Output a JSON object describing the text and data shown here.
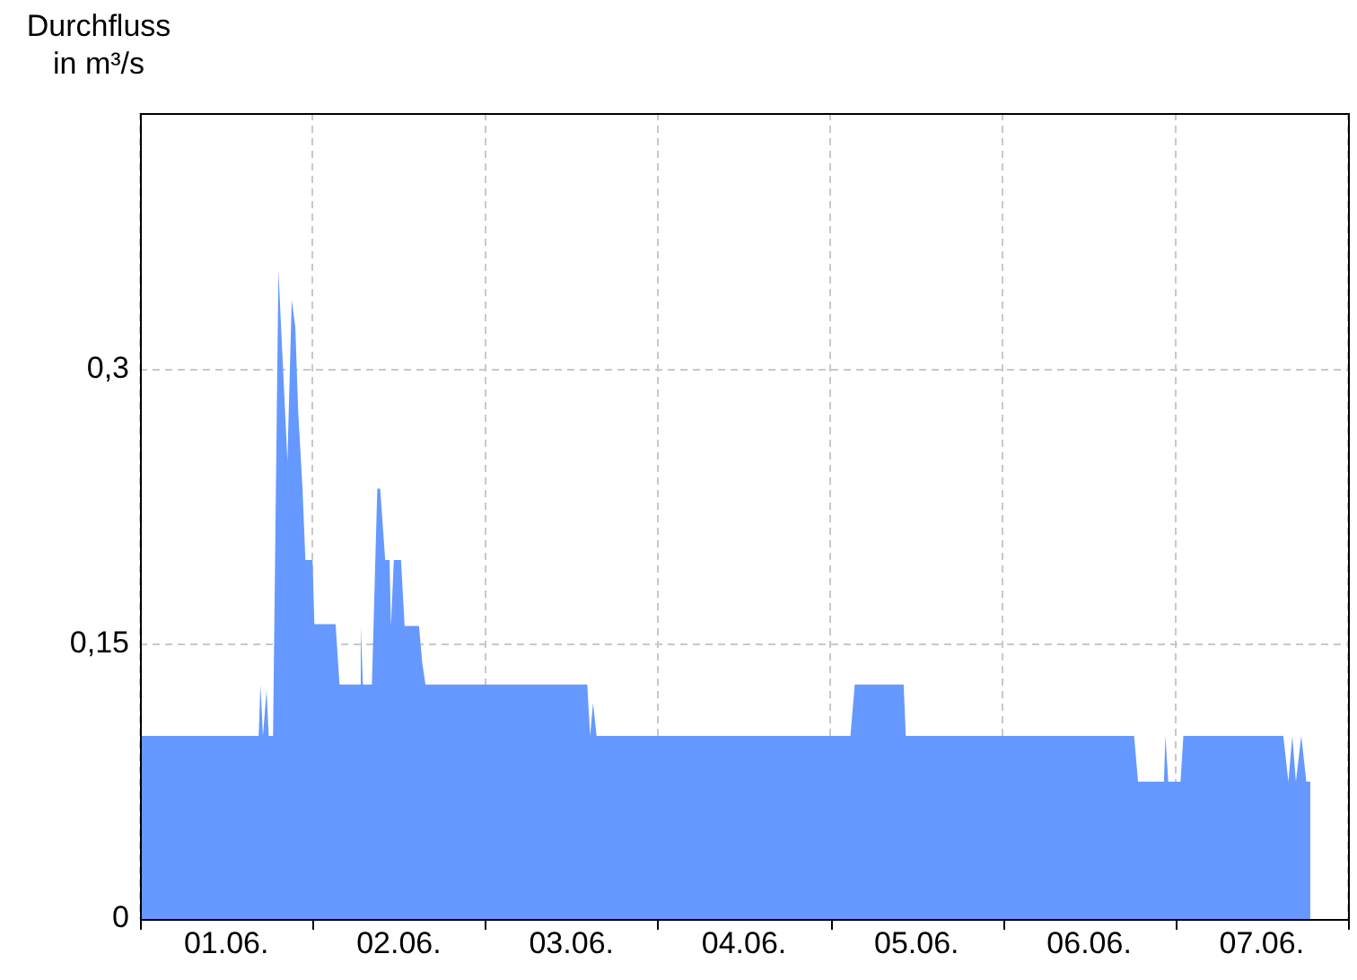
{
  "chart_data": {
    "type": "area",
    "ylabel": "Durchfluss\nin m³/s",
    "x": [
      "--06-01T00:00",
      "--06-01T16:30",
      "--06-01T16:45",
      "--06-01T17:06",
      "--06-01T17:36",
      "--06-01T17:54",
      "--06-01T18:30",
      "--06-01T19:15",
      "--06-01T20:30",
      "--06-01T21:06",
      "--06-01T21:36",
      "--06-01T22:00",
      "--06-01T22:36",
      "--06-01T23:00",
      "--06-02T00:00",
      "--06-02T00:15",
      "--06-02T03:12",
      "--06-02T03:45",
      "--06-02T06:30",
      "--06-02T06:42",
      "--06-02T07:00",
      "--06-02T08:15",
      "--06-02T09:00",
      "--06-02T09:24",
      "--06-02T10:06",
      "--06-02T10:42",
      "--06-02T10:54",
      "--06-02T11:18",
      "--06-02T12:18",
      "--06-02T12:48",
      "--06-02T14:48",
      "--06-02T15:15",
      "--06-02T15:42",
      "--06-03T14:12",
      "--06-03T14:36",
      "--06-03T15:00",
      "--06-03T15:30",
      "--06-05T02:48",
      "--06-05T03:24",
      "--06-05T10:12",
      "--06-05T10:30",
      "--06-06T18:15",
      "--06-06T18:48",
      "--06-06T22:24",
      "--06-06T22:36",
      "--06-06T23:00",
      "--06-07T00:42",
      "--06-07T01:06",
      "--06-07T15:00",
      "--06-07T15:42",
      "--06-07T16:15",
      "--06-07T16:45",
      "--06-07T17:30",
      "--06-07T18:12",
      "--06-07T18:45"
    ],
    "series": [
      {
        "color": "#6699ff",
        "values": [
          0.1,
          0.1,
          0.128,
          0.1,
          0.125,
          0.1,
          0.1,
          0.354,
          0.25,
          0.338,
          0.323,
          0.277,
          0.235,
          0.196,
          0.196,
          0.161,
          0.161,
          0.128,
          0.128,
          0.16,
          0.128,
          0.128,
          0.235,
          0.235,
          0.196,
          0.196,
          0.16,
          0.196,
          0.196,
          0.16,
          0.16,
          0.14,
          0.128,
          0.128,
          0.1,
          0.118,
          0.1,
          0.1,
          0.128,
          0.128,
          0.1,
          0.1,
          0.075,
          0.075,
          0.1,
          0.075,
          0.075,
          0.1,
          0.1,
          0.075,
          0.1,
          0.075,
          0.1,
          0.075,
          0.075
        ]
      }
    ],
    "xlim": [
      "--06-01",
      "--06-08"
    ],
    "xticks": [
      {
        "value": "--06-01",
        "label": null
      },
      {
        "value": "--06-01T12:00",
        "label": "01.06."
      },
      {
        "value": "--06-02",
        "label": null
      },
      {
        "value": "--06-02T12:00",
        "label": "02.06."
      },
      {
        "value": "--06-03",
        "label": null
      },
      {
        "value": "--06-03T12:00",
        "label": "03.06."
      },
      {
        "value": "--06-04",
        "label": null
      },
      {
        "value": "--06-04T12:00",
        "label": "04.06."
      },
      {
        "value": "--06-05",
        "label": null
      },
      {
        "value": "--06-05T12:00",
        "label": "05.06."
      },
      {
        "value": "--06-06",
        "label": null
      },
      {
        "value": "--06-06T12:00",
        "label": "06.06."
      },
      {
        "value": "--06-07",
        "label": null
      },
      {
        "value": "--06-07T12:00",
        "label": "07.06."
      },
      {
        "value": "--06-08",
        "label": null
      }
    ],
    "ylim": [
      0,
      0.44
    ],
    "yticks": [
      0,
      {
        "value": 0.15,
        "label": "0,15"
      },
      {
        "value": 0.3,
        "label": "0,3"
      }
    ],
    "grid": true,
    "legend": false
  }
}
